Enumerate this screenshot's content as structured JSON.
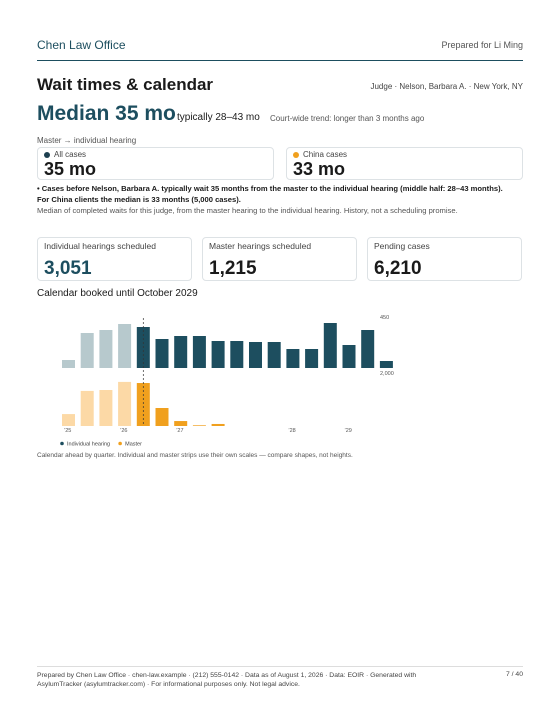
{
  "header": {
    "firm": "Chen Law Office",
    "prepared_for": "Prepared for Li Ming"
  },
  "title": "Wait times & calendar",
  "judge_line": "Judge · Nelson, Barbara A. · New York, NY",
  "median": {
    "headline": "Median 35 mo",
    "range": "typically 28–43 mo",
    "trend": "Court-wide trend: longer than 3 months ago"
  },
  "segment_label": "Master → individual hearing",
  "cards": [
    {
      "label": "All cases",
      "value": "35 mo",
      "dot": "#1d3f4f"
    },
    {
      "label": "China cases",
      "value": "33 mo",
      "dot": "#f0a01e"
    }
  ],
  "summary": "• Cases before Nelson, Barbara A. typically wait 35 months from the master to the individual hearing (middle half: 28–43 months). For China clients the median is 33 months (5,000 cases).",
  "note": "Median of completed waits for this judge, from the master hearing to the individual hearing. History, not a scheduling promise.",
  "stats": [
    {
      "label": "Individual hearings scheduled",
      "value": "3,051"
    },
    {
      "label": "Master hearings scheduled",
      "value": "1,215"
    },
    {
      "label": "Pending cases",
      "value": "6,210"
    }
  ],
  "chart_data": {
    "type": "bar",
    "title": "Calendar booked until October 2029",
    "categories": [
      "’25",
      null,
      null,
      "’26",
      null,
      null,
      "’27",
      null,
      null,
      null,
      null,
      null,
      "’28",
      null,
      null,
      "’29",
      null,
      null
    ],
    "series": [
      {
        "name": "Individual hearing",
        "color": "#1d4e5f",
        "colors": [
          "#b7c9cd",
          "#b7c9cd",
          "#b7c9cd",
          "#b7c9cd",
          "#1d4e5f",
          "#1d4e5f",
          "#1d4e5f",
          "#1d4e5f",
          "#1d4e5f",
          "#1d4e5f",
          "#1d4e5f",
          "#1d4e5f",
          "#1d4e5f",
          "#1d4e5f",
          "#1d4e5f",
          "#1d4e5f",
          "#1d4e5f",
          "#1d4e5f"
        ],
        "values": [
          80,
          350,
          380,
          440,
          410,
          290,
          320,
          320,
          270,
          270,
          260,
          260,
          190,
          190,
          450,
          230,
          380,
          70
        ],
        "ylim": [
          0,
          450
        ],
        "yticks": [
          450
        ]
      },
      {
        "name": "Master",
        "color": "#f0a01e",
        "colors": [
          "#fcd9a6",
          "#fcd9a6",
          "#fcd9a6",
          "#fcd9a6",
          "#f0a01e",
          "#f0a01e",
          "#f0a01e",
          "#f0a01e",
          "#f0a01e",
          "#f0a01e",
          "#f0a01e",
          "#f0a01e",
          "#f0a01e",
          "#f0a01e",
          "#f0a01e",
          "#f0a01e",
          "#f0a01e",
          "#f0a01e"
        ],
        "values": [
          530,
          1560,
          1600,
          1960,
          1910,
          800,
          220,
          30,
          90,
          0,
          0,
          0,
          0,
          0,
          0,
          0,
          0,
          0
        ],
        "ylim": [
          0,
          2000
        ],
        "yticks": [
          {
            "value": 2000,
            "label": "2,000"
          }
        ]
      }
    ],
    "caption": "Calendar ahead by quarter. Individual and master strips use their own scales — compare shapes, not heights."
  },
  "footer": {
    "text": "Prepared by Chen Law Office · chen-law.example · (212) 555-0142 · Data as of August 1, 2026 · Data: EOIR · Generated with AsylumTracker (asylumtracker.com) · For informational purposes only. Not legal advice.",
    "page": "7 / 40"
  }
}
